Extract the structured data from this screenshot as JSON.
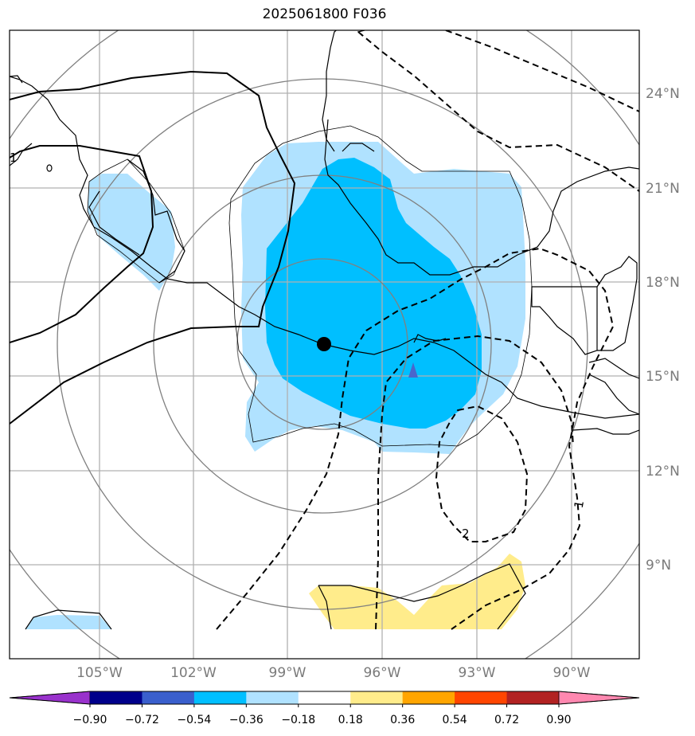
{
  "title": "2025061800 F036",
  "map": {
    "lon_labels": [
      "105°W",
      "102°W",
      "99°W",
      "96°W",
      "93°W",
      "90°W"
    ],
    "lat_labels": [
      "24°N",
      "21°N",
      "18°N",
      "15°N",
      "12°N",
      "9°N"
    ],
    "contour_labels": [
      "1",
      "1",
      "2",
      "1"
    ]
  },
  "colorbar": {
    "tick_labels": [
      "−0.90",
      "−0.72",
      "−0.54",
      "−0.36",
      "−0.18",
      "0.18",
      "0.36",
      "0.54",
      "0.72",
      "0.90"
    ],
    "colors": [
      "#9932cc",
      "#00008b",
      "#3a5fcd",
      "#00bfff",
      "#b0e2ff",
      "#ffffff",
      "#ffec8b",
      "#ffa500",
      "#ff4500",
      "#b22222",
      "#ff88b0"
    ]
  },
  "markers": {
    "center_dot_color": "#000000",
    "storm_symbol_color": "#4a66cc"
  }
}
